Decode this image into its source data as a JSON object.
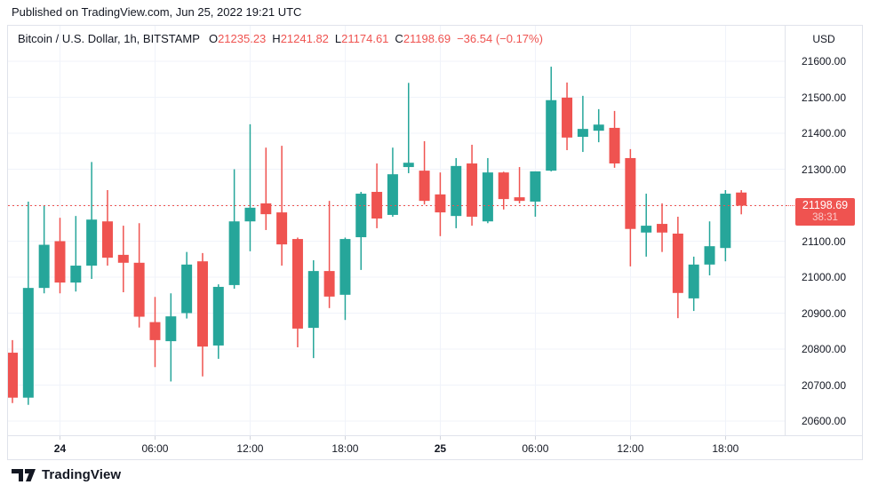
{
  "published_bar": {
    "text": "Published on TradingView.com, Jun 25, 2022 19:21 UTC"
  },
  "legend": {
    "symbol": "Bitcoin / U.S. Dollar, 1h, BITSTAMP",
    "open_label": "O",
    "open": "21235.23",
    "high_label": "H",
    "high": "21241.82",
    "low_label": "L",
    "low": "21174.61",
    "close_label": "C",
    "close": "21198.69",
    "change": "−36.54 (−0.17%)"
  },
  "footer": {
    "brand": "TradingView"
  },
  "chart_data": {
    "type": "candlestick",
    "title": "Bitcoin / U.S. Dollar, 1h, BITSTAMP",
    "symbol": "Bitcoin / U.S. Dollar",
    "interval": "1h",
    "exchange": "BITSTAMP",
    "unit_label": "USD",
    "ylim": [
      20558,
      21699
    ],
    "grid": true,
    "colors": {
      "up": "#26a69a",
      "down": "#ef5350",
      "grid": "#f0f3fa",
      "price_line": "#ef5350",
      "text": "#131722"
    },
    "price_line": {
      "value": 21198.69,
      "label": "21198.69",
      "countdown": "38:31"
    },
    "y_ticks": [
      {
        "value": 21600,
        "label": "21600.00"
      },
      {
        "value": 21500,
        "label": "21500.00"
      },
      {
        "value": 21400,
        "label": "21400.00"
      },
      {
        "value": 21300,
        "label": "21300.00"
      },
      {
        "value": 21200,
        "label": "21200.00",
        "hidden_behind_price_tag": true
      },
      {
        "value": 21100,
        "label": "21100.00"
      },
      {
        "value": 21000,
        "label": "21000.00"
      },
      {
        "value": 20900,
        "label": "20900.00"
      },
      {
        "value": 20800,
        "label": "20800.00"
      },
      {
        "value": 20700,
        "label": "20700.00"
      },
      {
        "value": 20600,
        "label": "20600.00"
      }
    ],
    "x_ticks": [
      {
        "label": "24",
        "candle_index": 3,
        "bold": true
      },
      {
        "label": "06:00",
        "candle_index": 9
      },
      {
        "label": "12:00",
        "candle_index": 15
      },
      {
        "label": "18:00",
        "candle_index": 21
      },
      {
        "label": "25",
        "candle_index": 27,
        "bold": true
      },
      {
        "label": "06:00",
        "candle_index": 33
      },
      {
        "label": "12:00",
        "candle_index": 39
      },
      {
        "label": "18:00",
        "candle_index": 45
      }
    ],
    "candle_columns": [
      "time",
      "open",
      "high",
      "low",
      "close"
    ],
    "candles": [
      [
        "Jun 23 21:00",
        20790,
        20825,
        20650,
        20665
      ],
      [
        "Jun 23 22:00",
        20665,
        21210,
        20645,
        20970
      ],
      [
        "Jun 23 23:00",
        20970,
        21200,
        20955,
        21090
      ],
      [
        "Jun 24 00:00",
        21100,
        21165,
        20955,
        20985
      ],
      [
        "Jun 24 01:00",
        20985,
        21170,
        20960,
        21032
      ],
      [
        "Jun 24 02:00",
        21032,
        21320,
        20995,
        21160
      ],
      [
        "Jun 24 03:00",
        21155,
        21242,
        21032,
        21054
      ],
      [
        "Jun 24 04:00",
        21062,
        21143,
        20958,
        21040
      ],
      [
        "Jun 24 05:00",
        21040,
        21150,
        20860,
        20890
      ],
      [
        "Jun 24 06:00",
        20875,
        20945,
        20750,
        20825
      ],
      [
        "Jun 24 07:00",
        20822,
        20955,
        20710,
        20891
      ],
      [
        "Jun 24 08:00",
        20900,
        21070,
        20885,
        21035
      ],
      [
        "Jun 24 09:00",
        21044,
        21067,
        20724,
        20807
      ],
      [
        "Jun 24 10:00",
        20810,
        20980,
        20773,
        20973
      ],
      [
        "Jun 24 11:00",
        20978,
        21300,
        20968,
        21155
      ],
      [
        "Jun 24 12:00",
        21155,
        21425,
        21072,
        21193
      ],
      [
        "Jun 24 13:00",
        21205,
        21360,
        21131,
        21175
      ],
      [
        "Jun 24 14:00",
        21180,
        21365,
        21032,
        21091
      ],
      [
        "Jun 24 15:00",
        21106,
        21110,
        20805,
        20857
      ],
      [
        "Jun 24 16:00",
        20859,
        21047,
        20775,
        21017
      ],
      [
        "Jun 24 17:00",
        21017,
        21212,
        20914,
        20946
      ],
      [
        "Jun 24 18:00",
        20951,
        21110,
        20881,
        21106
      ],
      [
        "Jun 24 19:00",
        21111,
        21237,
        21020,
        21232
      ],
      [
        "Jun 24 20:00",
        21237,
        21316,
        21136,
        21163
      ],
      [
        "Jun 24 21:00",
        21173,
        21360,
        21168,
        21286
      ],
      [
        "Jun 24 22:00",
        21306,
        21540,
        21289,
        21318
      ],
      [
        "Jun 24 23:00",
        21296,
        21378,
        21202,
        21212
      ],
      [
        "Jun 25 00:00",
        21230,
        21291,
        21114,
        21180
      ],
      [
        "Jun 25 01:00",
        21170,
        21331,
        21136,
        21309
      ],
      [
        "Jun 25 02:00",
        21316,
        21368,
        21143,
        21168
      ],
      [
        "Jun 25 03:00",
        21155,
        21331,
        21150,
        21291
      ],
      [
        "Jun 25 04:00",
        21291,
        21293,
        21188,
        21217
      ],
      [
        "Jun 25 05:00",
        21222,
        21306,
        21205,
        21212
      ],
      [
        "Jun 25 06:00",
        21210,
        21294,
        21168,
        21294
      ],
      [
        "Jun 25 07:00",
        21296,
        21585,
        21294,
        21492
      ],
      [
        "Jun 25 08:00",
        21499,
        21541,
        21353,
        21388
      ],
      [
        "Jun 25 09:00",
        21390,
        21504,
        21348,
        21412
      ],
      [
        "Jun 25 10:00",
        21407,
        21467,
        21375,
        21424
      ],
      [
        "Jun 25 11:00",
        21415,
        21462,
        21304,
        21316
      ],
      [
        "Jun 25 12:00",
        21331,
        21356,
        21030,
        21134
      ],
      [
        "Jun 25 13:00",
        21124,
        21232,
        21057,
        21143
      ],
      [
        "Jun 25 14:00",
        21148,
        21205,
        21070,
        21124
      ],
      [
        "Jun 25 15:00",
        21121,
        21168,
        20886,
        20956
      ],
      [
        "Jun 25 16:00",
        20941,
        21057,
        20906,
        21035
      ],
      [
        "Jun 25 17:00",
        21035,
        21155,
        21005,
        21086
      ],
      [
        "Jun 25 18:00",
        21081,
        21242,
        21044,
        21232
      ],
      [
        "Jun 25 19:00",
        21235.23,
        21241.82,
        21174.61,
        21198.69
      ]
    ]
  }
}
